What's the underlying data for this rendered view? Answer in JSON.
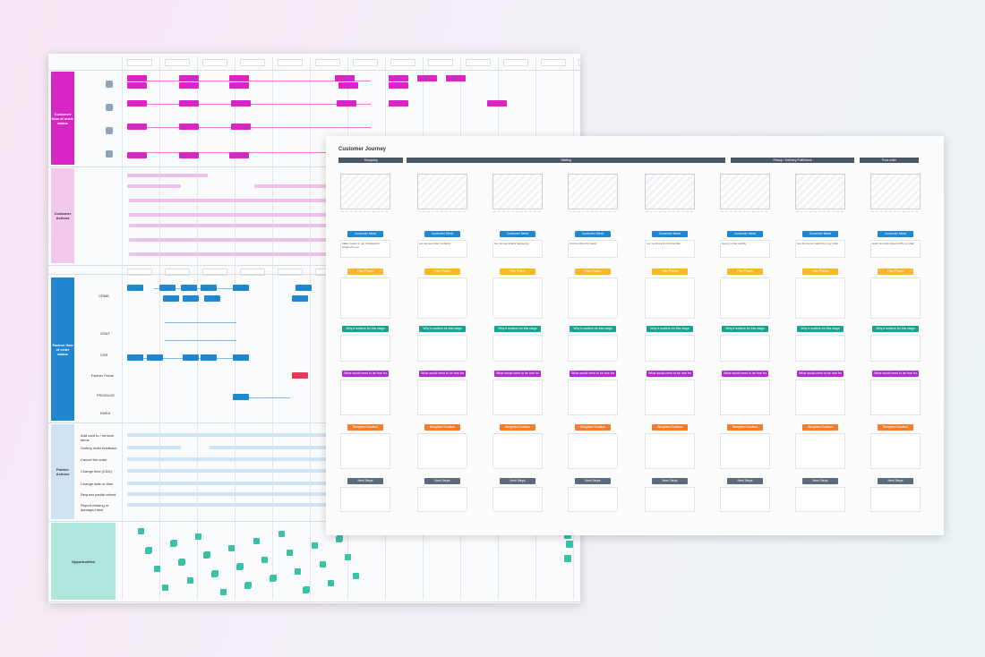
{
  "blueprint": {
    "lanes": [
      {
        "label": "Customer flow of order status"
      },
      {
        "label": "Customer Actions"
      },
      {
        "label": "Partner flow of order status"
      },
      {
        "label": "Partner Actions"
      },
      {
        "label": "Opportunities"
      }
    ],
    "channel_labels": [
      "CRMB",
      "OSAT",
      "CSR",
      "Partner Portal",
      "PRODUCE",
      "EMEA"
    ],
    "action_labels": [
      "Add card to / remove items",
      "Sorting order feedback",
      "Cancel the order",
      "Change time (C&D)",
      "Change date or time",
      "Request partial refund",
      "Report missing or damaged item"
    ]
  },
  "journey": {
    "title": "Customer Journey",
    "phases": [
      "Shopping",
      "Waiting",
      "Pickup / Delivery Fulfillment",
      "Post order"
    ],
    "section_labels": {
      "customer_need": "Customer Need",
      "pain_points": "Pain Points",
      "why": "Why it matters for this stage",
      "what_would": "What would need to be true for this",
      "weighted": "Weighted Solution",
      "next": "Next Steps"
    },
    "columns": [
      {
        "need": "Make it easy to get it delivered / shipped to me"
      },
      {
        "need": "Let me see what I ordered"
      },
      {
        "need": "Let me see what's happening"
      },
      {
        "need": "Tell me when it's ready"
      },
      {
        "need": "Let me know it's running late"
      },
      {
        "need": "Get my order quickly"
      },
      {
        "need": "Get the items I want from my order"
      },
      {
        "need": "Help me solve issues with my order"
      }
    ],
    "bottom_notes": [
      "None",
      "None",
      "None"
    ]
  },
  "colors": {
    "magenta": "#d826c5",
    "blue": "#1f86cf",
    "yellow": "#f6b728",
    "teal": "#15a58e",
    "purple": "#b62ad1",
    "orange": "#f07e2a",
    "slate": "#5b6b7b"
  }
}
